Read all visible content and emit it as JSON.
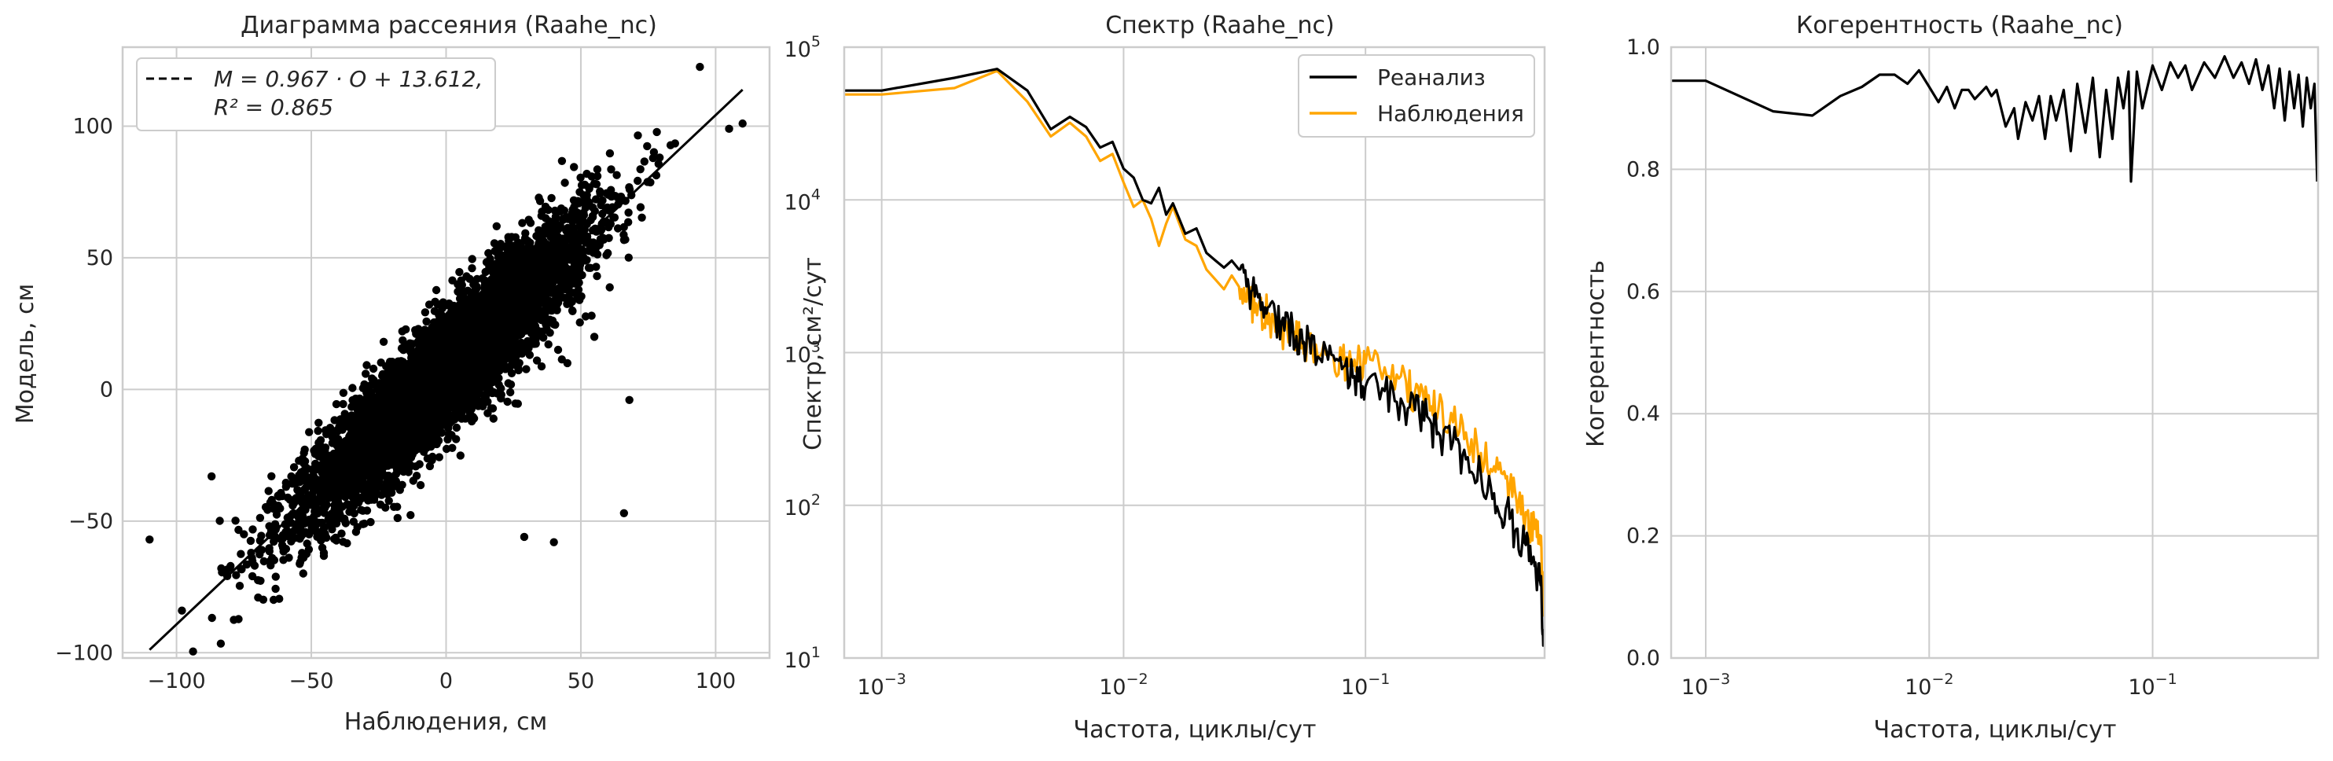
{
  "chart_data": [
    {
      "type": "scatter",
      "title": "Диаграмма рассеяния (Raahe_nc)",
      "xlabel": "Наблюдения, см",
      "ylabel": "Модель, см",
      "xlim": [
        -120,
        120
      ],
      "ylim": [
        -102,
        130
      ],
      "xticks": [
        -100,
        -50,
        0,
        50,
        100
      ],
      "yticks": [
        -100,
        -50,
        0,
        50,
        100
      ],
      "xtick_labels": [
        "−100",
        "−50",
        "0",
        "50",
        "100"
      ],
      "ytick_labels": [
        "−100",
        "−50",
        "0",
        "50",
        "100"
      ],
      "grid": true,
      "legend": {
        "placement": "upper-left",
        "line1": "M = 0.967 · O + 13.612,",
        "line2": "R² = 0.865"
      },
      "fit": {
        "slope": 0.967,
        "intercept": 13.612,
        "r2": 0.865,
        "x_range": [
          -110,
          110
        ],
        "color": "#000000",
        "style": "dashed"
      },
      "points": {
        "color": "#000000",
        "approx_count": 6000,
        "note_outliers": [
          [
            -110,
            -57
          ],
          [
            -98,
            -84
          ],
          [
            -87,
            -33
          ],
          [
            -75,
            -55
          ],
          [
            -72,
            -64
          ],
          [
            29,
            -56
          ],
          [
            40,
            -58
          ],
          [
            66,
            -47
          ],
          [
            68,
            -4
          ],
          [
            45,
            10
          ],
          [
            55,
            20
          ],
          [
            110,
            101
          ],
          [
            105,
            99
          ]
        ]
      }
    },
    {
      "type": "line",
      "title": "Спектр (Raahe_nc)",
      "xlabel": "Частота, циклы/сут",
      "ylabel": "Спектр, см²/сут",
      "xscale": "log",
      "yscale": "log",
      "xlim": [
        0.0007,
        0.55
      ],
      "ylim": [
        10,
        100000
      ],
      "xticks": [
        0.001,
        0.01,
        0.1
      ],
      "xtick_labels": [
        {
          "base": "10",
          "exp": "−3"
        },
        {
          "base": "10",
          "exp": "−2"
        },
        {
          "base": "10",
          "exp": "−1"
        }
      ],
      "yticks": [
        10,
        100,
        1000,
        10000,
        100000
      ],
      "ytick_labels": [
        {
          "base": "10",
          "exp": "1"
        },
        {
          "base": "10",
          "exp": "2"
        },
        {
          "base": "10",
          "exp": "3"
        },
        {
          "base": "10",
          "exp": "4"
        },
        {
          "base": "10",
          "exp": "5"
        }
      ],
      "grid": true,
      "legend": {
        "placement": "top-right"
      },
      "series": [
        {
          "name": "Реанализ",
          "color": "#000000",
          "points": [
            [
              0.0007,
              52000
            ],
            [
              0.001,
              52000
            ],
            [
              0.002,
              63000
            ],
            [
              0.003,
              72000
            ],
            [
              0.004,
              52000
            ],
            [
              0.005,
              29000
            ],
            [
              0.006,
              35000
            ],
            [
              0.007,
              30000
            ],
            [
              0.008,
              22000
            ],
            [
              0.009,
              24000
            ],
            [
              0.01,
              16000
            ],
            [
              0.011,
              14000
            ],
            [
              0.012,
              10000
            ],
            [
              0.013,
              9500
            ],
            [
              0.014,
              12000
            ],
            [
              0.015,
              8000
            ],
            [
              0.016,
              9500
            ],
            [
              0.018,
              6000
            ],
            [
              0.02,
              6500
            ],
            [
              0.022,
              4500
            ],
            [
              0.024,
              4000
            ],
            [
              0.026,
              3600
            ],
            [
              0.028,
              4000
            ],
            [
              0.03,
              3500
            ],
            [
              0.033,
              2600
            ],
            [
              0.036,
              2300
            ],
            [
              0.04,
              2000
            ],
            [
              0.045,
              1600
            ],
            [
              0.05,
              1500
            ],
            [
              0.055,
              1150
            ],
            [
              0.06,
              1300
            ],
            [
              0.07,
              900
            ],
            [
              0.08,
              780
            ],
            [
              0.09,
              700
            ],
            [
              0.1,
              600
            ],
            [
              0.12,
              560
            ],
            [
              0.14,
              500
            ],
            [
              0.16,
              420
            ],
            [
              0.18,
              380
            ],
            [
              0.2,
              300
            ],
            [
              0.23,
              260
            ],
            [
              0.26,
              200
            ],
            [
              0.3,
              160
            ],
            [
              0.34,
              120
            ],
            [
              0.38,
              95
            ],
            [
              0.42,
              70
            ],
            [
              0.46,
              55
            ],
            [
              0.5,
              40
            ],
            [
              0.53,
              30
            ],
            [
              0.545,
              14
            ]
          ]
        },
        {
          "name": "Наблюдения",
          "color": "#ffa500",
          "points": [
            [
              0.0007,
              49000
            ],
            [
              0.001,
              49000
            ],
            [
              0.002,
              54000
            ],
            [
              0.003,
              70000
            ],
            [
              0.004,
              44000
            ],
            [
              0.005,
              26000
            ],
            [
              0.006,
              32000
            ],
            [
              0.007,
              26000
            ],
            [
              0.008,
              18000
            ],
            [
              0.009,
              20000
            ],
            [
              0.01,
              13000
            ],
            [
              0.011,
              9000
            ],
            [
              0.012,
              10000
            ],
            [
              0.013,
              7500
            ],
            [
              0.014,
              5000
            ],
            [
              0.015,
              7000
            ],
            [
              0.016,
              9000
            ],
            [
              0.018,
              5500
            ],
            [
              0.02,
              5000
            ],
            [
              0.022,
              3500
            ],
            [
              0.024,
              3000
            ],
            [
              0.026,
              2600
            ],
            [
              0.028,
              3200
            ],
            [
              0.03,
              2700
            ],
            [
              0.033,
              2300
            ],
            [
              0.036,
              2000
            ],
            [
              0.04,
              1800
            ],
            [
              0.045,
              1500
            ],
            [
              0.05,
              1350
            ],
            [
              0.055,
              1200
            ],
            [
              0.06,
              1100
            ],
            [
              0.07,
              1000
            ],
            [
              0.08,
              900
            ],
            [
              0.09,
              900
            ],
            [
              0.1,
              850
            ],
            [
              0.12,
              800
            ],
            [
              0.14,
              700
            ],
            [
              0.16,
              550
            ],
            [
              0.18,
              500
            ],
            [
              0.2,
              420
            ],
            [
              0.23,
              350
            ],
            [
              0.26,
              300
            ],
            [
              0.3,
              220
            ],
            [
              0.34,
              180
            ],
            [
              0.38,
              150
            ],
            [
              0.42,
              110
            ],
            [
              0.46,
              90
            ],
            [
              0.5,
              70
            ],
            [
              0.53,
              55
            ],
            [
              0.545,
              20
            ]
          ]
        }
      ]
    },
    {
      "type": "line",
      "title": "Когерентность (Raahe_nc)",
      "xlabel": "Частота, циклы/сут",
      "ylabel": "Когерентность",
      "xscale": "log",
      "xlim": [
        0.0007,
        0.55
      ],
      "ylim": [
        0,
        1.0
      ],
      "xticks": [
        0.001,
        0.01,
        0.1
      ],
      "xtick_labels": [
        {
          "base": "10",
          "exp": "−3"
        },
        {
          "base": "10",
          "exp": "−2"
        },
        {
          "base": "10",
          "exp": "−1"
        }
      ],
      "yticks": [
        0.0,
        0.2,
        0.4,
        0.6,
        0.8,
        1.0
      ],
      "ytick_labels": [
        "0.0",
        "0.2",
        "0.4",
        "0.6",
        "0.8",
        "1.0"
      ],
      "grid": true,
      "series": [
        {
          "color": "#000000",
          "points": [
            [
              0.0007,
              0.945
            ],
            [
              0.001,
              0.945
            ],
            [
              0.002,
              0.895
            ],
            [
              0.003,
              0.888
            ],
            [
              0.004,
              0.92
            ],
            [
              0.005,
              0.935
            ],
            [
              0.006,
              0.955
            ],
            [
              0.007,
              0.955
            ],
            [
              0.008,
              0.94
            ],
            [
              0.009,
              0.962
            ],
            [
              0.01,
              0.935
            ],
            [
              0.011,
              0.91
            ],
            [
              0.012,
              0.935
            ],
            [
              0.013,
              0.9
            ],
            [
              0.014,
              0.93
            ],
            [
              0.015,
              0.93
            ],
            [
              0.016,
              0.915
            ],
            [
              0.018,
              0.935
            ],
            [
              0.019,
              0.92
            ],
            [
              0.02,
              0.93
            ],
            [
              0.022,
              0.87
            ],
            [
              0.024,
              0.9
            ],
            [
              0.025,
              0.85
            ],
            [
              0.027,
              0.91
            ],
            [
              0.029,
              0.88
            ],
            [
              0.031,
              0.92
            ],
            [
              0.033,
              0.85
            ],
            [
              0.035,
              0.92
            ],
            [
              0.037,
              0.88
            ],
            [
              0.04,
              0.93
            ],
            [
              0.043,
              0.83
            ],
            [
              0.046,
              0.94
            ],
            [
              0.05,
              0.86
            ],
            [
              0.054,
              0.95
            ],
            [
              0.058,
              0.82
            ],
            [
              0.062,
              0.93
            ],
            [
              0.066,
              0.85
            ],
            [
              0.07,
              0.95
            ],
            [
              0.074,
              0.9
            ],
            [
              0.078,
              0.96
            ],
            [
              0.08,
              0.78
            ],
            [
              0.085,
              0.96
            ],
            [
              0.09,
              0.9
            ],
            [
              0.1,
              0.97
            ],
            [
              0.11,
              0.93
            ],
            [
              0.12,
              0.975
            ],
            [
              0.13,
              0.95
            ],
            [
              0.14,
              0.97
            ],
            [
              0.15,
              0.93
            ],
            [
              0.17,
              0.975
            ],
            [
              0.19,
              0.95
            ],
            [
              0.21,
              0.985
            ],
            [
              0.23,
              0.95
            ],
            [
              0.25,
              0.975
            ],
            [
              0.27,
              0.94
            ],
            [
              0.29,
              0.98
            ],
            [
              0.31,
              0.93
            ],
            [
              0.33,
              0.97
            ],
            [
              0.35,
              0.9
            ],
            [
              0.37,
              0.965
            ],
            [
              0.39,
              0.88
            ],
            [
              0.41,
              0.96
            ],
            [
              0.43,
              0.9
            ],
            [
              0.45,
              0.955
            ],
            [
              0.47,
              0.87
            ],
            [
              0.49,
              0.95
            ],
            [
              0.51,
              0.9
            ],
            [
              0.53,
              0.94
            ],
            [
              0.545,
              0.78
            ]
          ]
        }
      ]
    }
  ]
}
